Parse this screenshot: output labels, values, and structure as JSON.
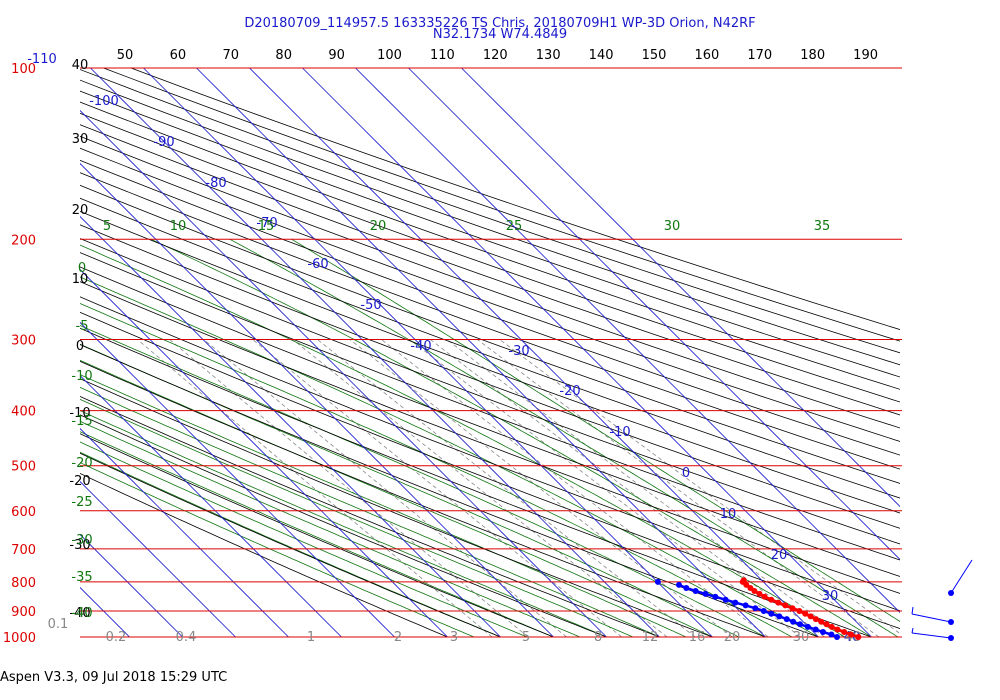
{
  "title_line1": "D20180709_114957.5 163335226 TS Chris, 20180709H1 WP-3D Orion, N42RF",
  "title_line2": "N32.1734 W74.4849",
  "footer": "Aspen V3.3, 09 Jul 2018  15:29 UTC",
  "colors": {
    "isobar": "#dd0000",
    "isotherm": "#1a1acc",
    "dry_adiabat": "#000000",
    "moist_adiabat": "#117711",
    "mixing_ratio": "#888888",
    "temperature_trace": "#ff0000",
    "dewpoint_trace": "#0000ff"
  },
  "chart_data": {
    "type": "skew-t log-p",
    "pressure_axis": {
      "ticks": [
        "100",
        "200",
        "300",
        "400",
        "500",
        "600",
        "700",
        "800",
        "900",
        "1000"
      ],
      "ylim_hpa": [
        100,
        1000
      ],
      "scale": "log"
    },
    "isotherm_labels": [
      "-110",
      "-100",
      "-90",
      "-80",
      "-70",
      "-60",
      "-50",
      "-40",
      "-30",
      "-20",
      "-10",
      "0",
      "10",
      "20",
      "30",
      "40"
    ],
    "dry_adiabat_top_labels": [
      "50",
      "60",
      "70",
      "80",
      "90",
      "100",
      "110",
      "120",
      "130",
      "140",
      "150",
      "160",
      "170",
      "180",
      "190"
    ],
    "dry_adiabat_left_labels": [
      "40",
      "30",
      "20",
      "10",
      "0",
      "-10",
      "-20",
      "-30",
      "-40"
    ],
    "moist_adiabat_top_labels": [
      "5",
      "10",
      "15",
      "20",
      "25",
      "30",
      "35"
    ],
    "moist_adiabat_left_labels": [
      "0",
      "-5",
      "-10",
      "-15",
      "-20",
      "-25",
      "-30",
      "-35",
      "-40"
    ],
    "mixing_ratio_labels": [
      "0.1",
      "0.2",
      "0.4",
      "1",
      "2",
      "3",
      "5",
      "8",
      "12",
      "16",
      "20",
      "30",
      "40"
    ],
    "temperature_trace": {
      "pressure": [
        1000,
        990,
        980,
        970,
        960,
        950,
        940,
        930,
        920,
        910,
        900,
        890,
        880,
        870,
        860,
        850,
        840,
        830,
        820,
        810,
        800,
        795
      ],
      "temperature": [
        27.5,
        26.6,
        25.8,
        25.0,
        24.4,
        23.9,
        23.4,
        22.9,
        22.4,
        21.9,
        21.3,
        20.5,
        19.7,
        18.9,
        18.1,
        17.4,
        17.0,
        16.6,
        16.4,
        16.2,
        16.1,
        16.6
      ]
    },
    "dewpoint_trace": {
      "pressure": [
        1000,
        990,
        980,
        970,
        960,
        950,
        940,
        930,
        920,
        910,
        900,
        890,
        880,
        870,
        860,
        850,
        840,
        830,
        820,
        810,
        800
      ],
      "dewpoint": [
        23.5,
        22.9,
        21.8,
        20.9,
        19.9,
        18.9,
        18.1,
        17.4,
        16.5,
        15.5,
        14.6,
        13.5,
        12.2,
        10.8,
        9.5,
        8.1,
        6.8,
        5.5,
        4.3,
        3.5,
        0.1
      ]
    }
  }
}
